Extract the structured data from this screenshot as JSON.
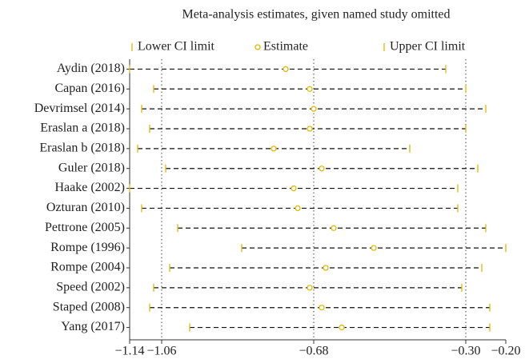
{
  "chart_data": {
    "type": "forest",
    "title": "Meta-analysis estimates, given named study omitted",
    "categories": [
      "Aydin (2018)",
      "Capan (2016)",
      "Devrimsel (2014)",
      "Eraslan a (2018)",
      "Eraslan b (2018)",
      "Guler (2018)",
      "Haake (2002)",
      "Ozturan (2010)",
      "Pettrone (2005)",
      "Rompe (1996)",
      "Rompe (2004)",
      "Speed (2002)",
      "Staped (2008)",
      "Yang (2017)"
    ],
    "series": [
      {
        "name": "Lower CI limit",
        "color": "#e0b800",
        "values": [
          -1.14,
          -1.08,
          -1.11,
          -1.09,
          -1.12,
          -1.05,
          -1.14,
          -1.11,
          -1.02,
          -0.86,
          -1.04,
          -1.08,
          -1.09,
          -0.99
        ]
      },
      {
        "name": "Estimate",
        "color": "#e0b800",
        "values": [
          -0.75,
          -0.69,
          -0.68,
          -0.69,
          -0.78,
          -0.66,
          -0.73,
          -0.72,
          -0.63,
          -0.53,
          -0.65,
          -0.69,
          -0.66,
          -0.61
        ]
      },
      {
        "name": "Upper CI limit",
        "color": "#e0b800",
        "values": [
          -0.35,
          -0.3,
          -0.25,
          -0.3,
          -0.44,
          -0.27,
          -0.32,
          -0.32,
          -0.25,
          -0.2,
          -0.26,
          -0.31,
          -0.24,
          -0.24
        ]
      }
    ],
    "xlim": [
      -1.14,
      -0.2
    ],
    "xticks": [
      {
        "value": -1.14,
        "label": "−1.14"
      },
      {
        "value": -1.06,
        "label": "−1.06"
      },
      {
        "value": -0.68,
        "label": "−0.68"
      },
      {
        "value": -0.3,
        "label": "−0.30"
      },
      {
        "value": -0.2,
        "label": "−0.20"
      }
    ],
    "reference_lines": [
      -1.06,
      -0.68,
      -0.3
    ]
  }
}
